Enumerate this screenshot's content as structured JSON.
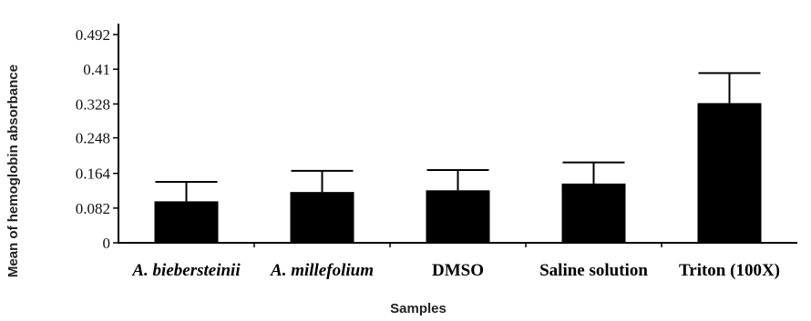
{
  "chart_data": {
    "type": "bar",
    "title": "",
    "xlabel": "Samples",
    "ylabel": "Mean of hemoglobin absorbance",
    "categories": [
      "A. biebersteinii",
      "A. millefolium",
      "DMSO",
      "Saline solution",
      "Triton (100X)"
    ],
    "category_italic": [
      true,
      true,
      false,
      false,
      false
    ],
    "values": [
      0.098,
      0.12,
      0.124,
      0.14,
      0.33
    ],
    "error_upper": [
      0.144,
      0.17,
      0.172,
      0.19,
      0.401
    ],
    "ylim": [
      0,
      0.492
    ],
    "yticks": [
      0,
      0.082,
      0.164,
      0.248,
      0.328,
      0.41,
      0.492
    ],
    "ytick_labels": [
      "0",
      "0.082",
      "0.164",
      "0.248",
      "0.328",
      "0.41",
      "0.492"
    ],
    "bar_color": "#000000",
    "grid": false,
    "legend": "none"
  }
}
